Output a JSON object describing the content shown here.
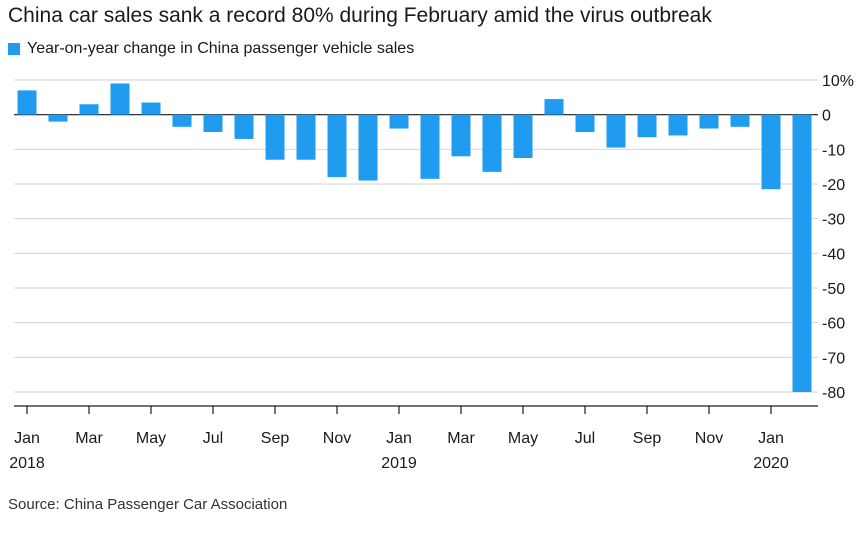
{
  "chart_data": {
    "type": "bar",
    "title": "China car sales sank a record 80% during February amid the virus outbreak",
    "series": [
      {
        "name": "Year-on-year change in China passenger vehicle sales",
        "color": "#1f9bef",
        "values": [
          7,
          -2,
          3,
          9,
          3.5,
          -3.5,
          -5,
          -7,
          -13,
          -13,
          -18,
          -19,
          -4,
          -18.5,
          -12,
          -16.5,
          -12.5,
          4.5,
          -5,
          -9.5,
          -6.5,
          -6,
          -4,
          -3.5,
          -21.5,
          -80
        ]
      }
    ],
    "categories": [
      "Jan 2018",
      "Feb 2018",
      "Mar 2018",
      "Apr 2018",
      "May 2018",
      "Jun 2018",
      "Jul 2018",
      "Aug 2018",
      "Sep 2018",
      "Oct 2018",
      "Nov 2018",
      "Dec 2018",
      "Jan 2019",
      "Feb 2019",
      "Mar 2019",
      "Apr 2019",
      "May 2019",
      "Jun 2019",
      "Jul 2019",
      "Aug 2019",
      "Sep 2019",
      "Oct 2019",
      "Nov 2019",
      "Dec 2019",
      "Jan 2020",
      "Feb 2020"
    ],
    "x_ticks": [
      {
        "index": 0,
        "label": "Jan",
        "year": "2018"
      },
      {
        "index": 2,
        "label": "Mar"
      },
      {
        "index": 4,
        "label": "May"
      },
      {
        "index": 6,
        "label": "Jul"
      },
      {
        "index": 8,
        "label": "Sep"
      },
      {
        "index": 10,
        "label": "Nov"
      },
      {
        "index": 12,
        "label": "Jan",
        "year": "2019"
      },
      {
        "index": 14,
        "label": "Mar"
      },
      {
        "index": 16,
        "label": "May"
      },
      {
        "index": 18,
        "label": "Jul"
      },
      {
        "index": 20,
        "label": "Sep"
      },
      {
        "index": 22,
        "label": "Nov"
      },
      {
        "index": 24,
        "label": "Jan",
        "year": "2020"
      }
    ],
    "y_ticks": [
      {
        "value": 10,
        "label": "10%"
      },
      {
        "value": 0,
        "label": "0"
      },
      {
        "value": -10,
        "label": "-10"
      },
      {
        "value": -20,
        "label": "-20"
      },
      {
        "value": -30,
        "label": "-30"
      },
      {
        "value": -40,
        "label": "-40"
      },
      {
        "value": -50,
        "label": "-50"
      },
      {
        "value": -60,
        "label": "-60"
      },
      {
        "value": -70,
        "label": "-70"
      },
      {
        "value": -80,
        "label": "-80"
      }
    ],
    "ylim": [
      -80,
      10
    ],
    "grid": true,
    "legend_position": "top-left"
  },
  "footer": {
    "source": "Source: China Passenger Car Association"
  }
}
